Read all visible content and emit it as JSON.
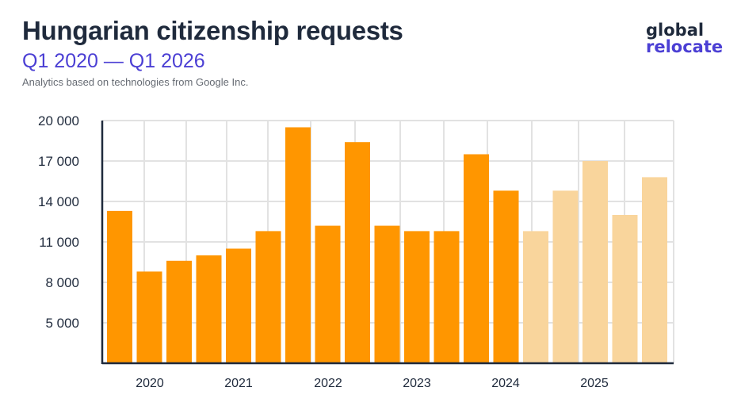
{
  "header": {
    "title": "Hungarian citizenship requests",
    "subtitle": "Q1 2020 — Q1 2026",
    "note": "Analytics based on technologies from Google Inc."
  },
  "logo": {
    "line1": "global",
    "line2": "relocate"
  },
  "colors": {
    "actual": "#ff9600",
    "forecast": "#f9d59c",
    "grid": "#e2e2e2",
    "axis": "#1f2a3c"
  },
  "chart_data": {
    "type": "bar",
    "title": "Hungarian citizenship requests",
    "subtitle": "Q1 2020 — Q1 2026",
    "grid": true,
    "ylim": [
      2000,
      20000
    ],
    "yticks": [
      5000,
      8000,
      11000,
      14000,
      17000,
      20000
    ],
    "ytick_labels": [
      "5 000",
      "8 000",
      "11 000",
      "14 000",
      "17 000",
      "20 000"
    ],
    "xtick_labels": [
      "2020",
      "2021",
      "2022",
      "2023",
      "2024",
      "2025"
    ],
    "series": [
      {
        "values": [
          13300,
          8800,
          9600,
          10000,
          10500,
          11800,
          19500,
          12200,
          18400,
          12200,
          11800,
          11800,
          17500,
          14800
        ],
        "style": "actual"
      },
      {
        "values": [
          11800,
          14800,
          17000,
          13000,
          15800
        ],
        "style": "forecast"
      }
    ]
  }
}
